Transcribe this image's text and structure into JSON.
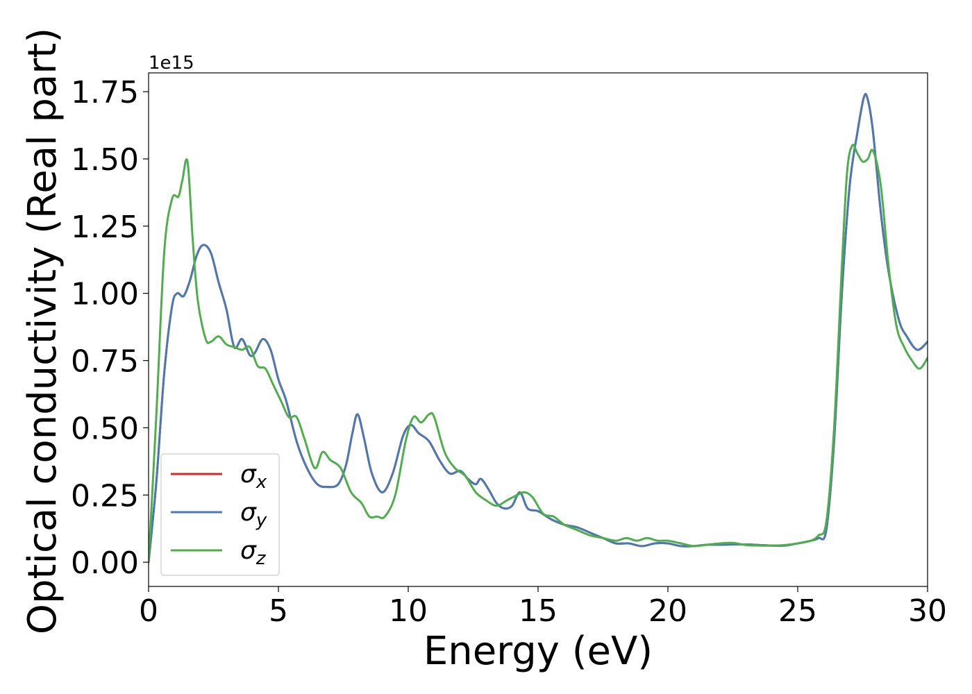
{
  "chart_data": {
    "type": "line",
    "title": "",
    "xlabel": "Energy (eV)",
    "ylabel": "Optical conductivity (Real part)",
    "offset_text": "1e15",
    "xlim": [
      0,
      30
    ],
    "ylim": [
      -0.09,
      1.82
    ],
    "y_scale_factor": 1000000000000000.0,
    "xticks": [
      0,
      5,
      10,
      15,
      20,
      25,
      30
    ],
    "xtick_labels": [
      "0",
      "5",
      "10",
      "15",
      "20",
      "25",
      "30"
    ],
    "yticks": [
      0,
      0.25,
      0.5,
      0.75,
      1.0,
      1.25,
      1.5,
      1.75
    ],
    "ytick_labels": [
      "0.00",
      "0.25",
      "0.50",
      "0.75",
      "1.00",
      "1.25",
      "1.50",
      "1.75"
    ],
    "grid": false,
    "legend_position": "lower-left",
    "series": [
      {
        "name": "σx",
        "base": "σ",
        "sub": "x",
        "color": "#d62728",
        "x": [
          0,
          0.3,
          0.6,
          0.9,
          1.1,
          1.35,
          1.6,
          1.85,
          2.1,
          2.4,
          2.7,
          3.0,
          3.3,
          3.6,
          3.9,
          4.1,
          4.4,
          4.7,
          5.0,
          5.3,
          5.7,
          6.1,
          6.5,
          6.9,
          7.3,
          7.6,
          7.85,
          8.05,
          8.3,
          8.6,
          9.0,
          9.4,
          9.8,
          10.1,
          10.4,
          10.8,
          11.2,
          11.6,
          12.0,
          12.3,
          12.6,
          12.8,
          13.1,
          13.4,
          13.7,
          14.0,
          14.3,
          14.6,
          15.0,
          15.5,
          16.0,
          16.5,
          17.0,
          17.5,
          18.0,
          18.5,
          19.0,
          19.5,
          20.0,
          20.5,
          21.0,
          21.5,
          22.0,
          22.5,
          23.0,
          23.5,
          24.0,
          24.5,
          25.0,
          25.5,
          25.8,
          26.1,
          26.4,
          26.7,
          27.0,
          27.3,
          27.55,
          27.7,
          27.9,
          28.2,
          28.5,
          28.9,
          29.2,
          29.6,
          30.0
        ],
        "values": [
          0.0,
          0.3,
          0.7,
          0.95,
          1.0,
          0.99,
          1.05,
          1.14,
          1.18,
          1.15,
          1.04,
          0.94,
          0.8,
          0.83,
          0.77,
          0.78,
          0.83,
          0.79,
          0.68,
          0.6,
          0.45,
          0.35,
          0.29,
          0.28,
          0.29,
          0.36,
          0.48,
          0.55,
          0.46,
          0.33,
          0.26,
          0.33,
          0.47,
          0.51,
          0.48,
          0.45,
          0.38,
          0.33,
          0.34,
          0.31,
          0.29,
          0.31,
          0.27,
          0.22,
          0.2,
          0.21,
          0.26,
          0.2,
          0.19,
          0.16,
          0.14,
          0.13,
          0.11,
          0.09,
          0.07,
          0.07,
          0.06,
          0.07,
          0.07,
          0.06,
          0.06,
          0.065,
          0.065,
          0.066,
          0.066,
          0.064,
          0.062,
          0.062,
          0.07,
          0.08,
          0.09,
          0.12,
          0.45,
          1.0,
          1.4,
          1.6,
          1.73,
          1.72,
          1.6,
          1.3,
          1.08,
          0.9,
          0.84,
          0.79,
          0.82
        ]
      },
      {
        "name": "σy",
        "base": "σ",
        "sub": "y",
        "color": "#4a7ab5",
        "x": [
          0,
          0.3,
          0.6,
          0.9,
          1.1,
          1.35,
          1.6,
          1.85,
          2.1,
          2.4,
          2.7,
          3.0,
          3.3,
          3.6,
          3.9,
          4.1,
          4.4,
          4.7,
          5.0,
          5.3,
          5.7,
          6.1,
          6.5,
          6.9,
          7.3,
          7.6,
          7.85,
          8.05,
          8.3,
          8.6,
          9.0,
          9.4,
          9.8,
          10.1,
          10.4,
          10.8,
          11.2,
          11.6,
          12.0,
          12.3,
          12.6,
          12.8,
          13.1,
          13.4,
          13.7,
          14.0,
          14.3,
          14.6,
          15.0,
          15.5,
          16.0,
          16.5,
          17.0,
          17.5,
          18.0,
          18.5,
          19.0,
          19.5,
          20.0,
          20.5,
          21.0,
          21.5,
          22.0,
          22.5,
          23.0,
          23.5,
          24.0,
          24.5,
          25.0,
          25.5,
          25.8,
          26.1,
          26.4,
          26.7,
          27.0,
          27.3,
          27.55,
          27.7,
          27.9,
          28.2,
          28.5,
          28.9,
          29.2,
          29.6,
          30.0
        ],
        "values": [
          0.0,
          0.3,
          0.7,
          0.95,
          1.0,
          0.99,
          1.05,
          1.14,
          1.18,
          1.15,
          1.04,
          0.94,
          0.8,
          0.83,
          0.77,
          0.78,
          0.83,
          0.79,
          0.68,
          0.6,
          0.45,
          0.35,
          0.29,
          0.28,
          0.29,
          0.36,
          0.48,
          0.55,
          0.46,
          0.33,
          0.26,
          0.33,
          0.47,
          0.51,
          0.48,
          0.45,
          0.38,
          0.33,
          0.34,
          0.31,
          0.29,
          0.31,
          0.27,
          0.22,
          0.2,
          0.21,
          0.26,
          0.2,
          0.19,
          0.16,
          0.14,
          0.13,
          0.11,
          0.09,
          0.07,
          0.07,
          0.06,
          0.07,
          0.07,
          0.06,
          0.06,
          0.065,
          0.065,
          0.066,
          0.066,
          0.064,
          0.062,
          0.062,
          0.07,
          0.08,
          0.09,
          0.12,
          0.45,
          1.0,
          1.4,
          1.6,
          1.73,
          1.72,
          1.6,
          1.3,
          1.08,
          0.9,
          0.84,
          0.79,
          0.82
        ]
      },
      {
        "name": "σz",
        "base": "σ",
        "sub": "z",
        "color": "#4daf4a",
        "x": [
          0,
          0.3,
          0.6,
          0.9,
          1.15,
          1.3,
          1.5,
          1.7,
          1.9,
          2.2,
          2.4,
          2.7,
          3.0,
          3.3,
          3.6,
          3.9,
          4.2,
          4.5,
          4.8,
          5.1,
          5.4,
          5.7,
          6.0,
          6.4,
          6.7,
          7.0,
          7.4,
          7.8,
          8.2,
          8.5,
          8.8,
          9.1,
          9.5,
          9.9,
          10.2,
          10.5,
          10.8,
          11.0,
          11.4,
          11.8,
          12.2,
          12.6,
          13.0,
          13.4,
          13.8,
          14.2,
          14.5,
          14.8,
          15.2,
          15.6,
          16.0,
          16.5,
          17.0,
          17.5,
          18.0,
          18.4,
          18.8,
          19.2,
          19.6,
          20.0,
          20.5,
          21.0,
          21.5,
          22.0,
          22.5,
          23.0,
          23.5,
          24.0,
          24.5,
          25.0,
          25.5,
          25.8,
          26.1,
          26.4,
          26.7,
          26.9,
          27.1,
          27.3,
          27.5,
          27.7,
          27.9,
          28.2,
          28.5,
          28.8,
          29.1,
          29.4,
          29.7,
          30.0
        ],
        "values": [
          0.0,
          0.55,
          1.15,
          1.35,
          1.36,
          1.42,
          1.49,
          1.2,
          0.97,
          0.83,
          0.82,
          0.84,
          0.81,
          0.8,
          0.79,
          0.8,
          0.73,
          0.72,
          0.66,
          0.6,
          0.54,
          0.54,
          0.46,
          0.35,
          0.41,
          0.38,
          0.35,
          0.26,
          0.22,
          0.17,
          0.17,
          0.17,
          0.25,
          0.45,
          0.54,
          0.52,
          0.55,
          0.54,
          0.41,
          0.35,
          0.32,
          0.26,
          0.23,
          0.21,
          0.23,
          0.25,
          0.26,
          0.24,
          0.18,
          0.17,
          0.14,
          0.12,
          0.1,
          0.09,
          0.08,
          0.09,
          0.08,
          0.09,
          0.08,
          0.08,
          0.07,
          0.06,
          0.065,
          0.07,
          0.072,
          0.064,
          0.062,
          0.062,
          0.064,
          0.07,
          0.08,
          0.1,
          0.15,
          0.5,
          1.1,
          1.45,
          1.55,
          1.52,
          1.49,
          1.5,
          1.53,
          1.4,
          1.1,
          0.88,
          0.8,
          0.75,
          0.72,
          0.76
        ]
      }
    ]
  }
}
